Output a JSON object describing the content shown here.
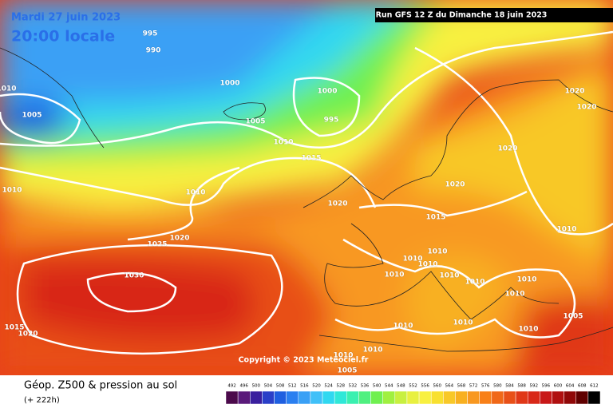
{
  "header": {
    "valid_date": "Mardi 27 juin 2023",
    "local_time": "20:00 locale",
    "run": "Run GFS 12 Z du Dimanche 18 juin 2023"
  },
  "copyright": "Copyright © 2023 Meteociel.fr",
  "footer": {
    "title": "Géop. Z500 & pression au sol",
    "lead_time": "(+ 222h)"
  },
  "isobar_labels": [
    "995",
    "990",
    "1000",
    "1010",
    "1005",
    "1005",
    "1000",
    "995",
    "1010",
    "1015",
    "1020",
    "1020",
    "1020",
    "1010",
    "1010",
    "1020",
    "1020",
    "1015",
    "1025",
    "1020",
    "1010",
    "1030",
    "1010",
    "1010",
    "1010",
    "1010",
    "1010",
    "1010",
    "1010",
    "1010",
    "1005",
    "1010",
    "1010",
    "1010",
    "1010",
    "1010",
    "1005",
    "1020",
    "1015"
  ],
  "legend": {
    "levels": [
      492,
      496,
      500,
      504,
      508,
      512,
      516,
      520,
      524,
      528,
      532,
      536,
      540,
      544,
      548,
      552,
      556,
      560,
      564,
      568,
      572,
      576,
      580,
      584,
      588,
      592,
      596,
      600,
      604,
      608,
      612
    ],
    "colors": [
      "#4b0a4b",
      "#5a1a7a",
      "#3a1f9e",
      "#2a3fc8",
      "#1f5fe0",
      "#2a7ff0",
      "#3aa0f5",
      "#40c0f8",
      "#30d8f0",
      "#30e8d8",
      "#3af0b0",
      "#50f080",
      "#70f050",
      "#a0f040",
      "#c8f040",
      "#e8f040",
      "#f8f040",
      "#f8e030",
      "#f8c828",
      "#f8b020",
      "#f89820",
      "#f88018",
      "#f06818",
      "#e85018",
      "#e03818",
      "#d82818",
      "#c81818",
      "#b01010",
      "#900808",
      "#600000",
      "#000000"
    ]
  }
}
